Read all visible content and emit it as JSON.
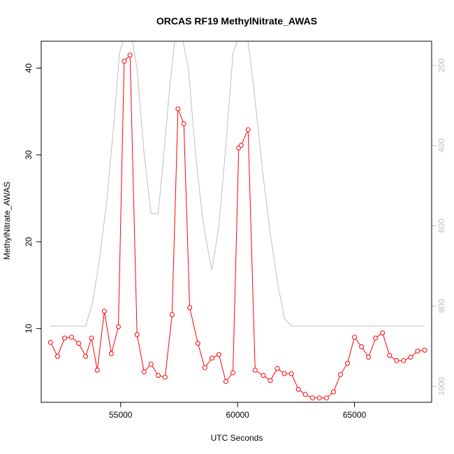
{
  "chart_data": {
    "type": "line",
    "title": "ORCAS RF19 MethylNitrate_AWAS",
    "xlabel": "UTC Seconds",
    "ylabel": "MethylNitrate_AWAS",
    "xlim": [
      51600,
      68300
    ],
    "ylim": [
      1.5,
      43.1
    ],
    "xticks": [
      55000,
      60000,
      65000
    ],
    "xtick_labels": [
      "55000",
      "60000",
      "65000"
    ],
    "yticks": [
      10,
      20,
      30,
      40
    ],
    "ytick_labels": [
      "10",
      "20",
      "30",
      "40"
    ],
    "y2lim": [
      1040,
      140
    ],
    "y2ticks": [
      200,
      400,
      600,
      800,
      1000
    ],
    "y2tick_labels": [
      "200",
      "400",
      "600",
      "800",
      "1000"
    ],
    "grid": false,
    "colors": {
      "series": "#ff0000",
      "pressure": "#bebebe",
      "axes": "#000000",
      "right_axis": "#bebebe"
    },
    "series": [
      {
        "x": [
          52000,
          52300,
          52600,
          52900,
          53200,
          53500,
          53750,
          54000,
          54300,
          54600,
          54900,
          55150,
          55400,
          55700,
          56000,
          56300,
          56600,
          56900,
          57200,
          57450,
          57700,
          57950,
          58300,
          58600,
          58900,
          59200,
          59500,
          59800,
          60050,
          60150,
          60450,
          60750,
          61100,
          61400,
          61700,
          62000,
          62300,
          62600,
          62900,
          63200,
          63500,
          63800,
          64100,
          64400,
          64700,
          65000,
          65300,
          65600,
          65900,
          66200,
          66500,
          66800,
          67100,
          67400,
          67700,
          68000
        ],
        "values": [
          8.4,
          6.8,
          8.9,
          9.0,
          8.3,
          6.8,
          8.9,
          5.2,
          12.0,
          7.1,
          10.2,
          40.8,
          41.5,
          9.3,
          5.0,
          5.9,
          4.6,
          4.4,
          11.6,
          35.3,
          33.6,
          12.4,
          8.3,
          5.5,
          6.6,
          7.0,
          3.9,
          4.9,
          30.8,
          31.1,
          32.9,
          5.2,
          4.6,
          4.0,
          5.4,
          4.8,
          4.8,
          3.0,
          2.4,
          2.0,
          2.0,
          2.0,
          2.7,
          4.7,
          6.0,
          9.0,
          7.9,
          6.7,
          8.9,
          9.5,
          6.9,
          6.3,
          6.3,
          6.7,
          7.4,
          7.5
        ]
      }
    ],
    "pressure_series": {
      "x": [
        52000,
        52500,
        53000,
        53500,
        53800,
        54100,
        54400,
        54700,
        54950,
        55200,
        55450,
        55700,
        56000,
        56300,
        56600,
        56850,
        57100,
        57350,
        57600,
        57900,
        58200,
        58500,
        58700,
        58900,
        59200,
        59500,
        59800,
        60100,
        60400,
        60700,
        61100,
        61400,
        61700,
        62000,
        62300,
        62600,
        63000,
        63500,
        64000,
        64500,
        65000,
        65500,
        66000,
        66500,
        67000,
        67500,
        68000
      ],
      "values": [
        850,
        850,
        850,
        850,
        790,
        680,
        540,
        350,
        170,
        120,
        120,
        210,
        420,
        570,
        570,
        420,
        250,
        120,
        120,
        210,
        420,
        580,
        650,
        710,
        600,
        400,
        170,
        120,
        120,
        260,
        480,
        620,
        740,
        830,
        850,
        850,
        850,
        850,
        850,
        850,
        850,
        850,
        850,
        850,
        850,
        850,
        850
      ]
    }
  }
}
